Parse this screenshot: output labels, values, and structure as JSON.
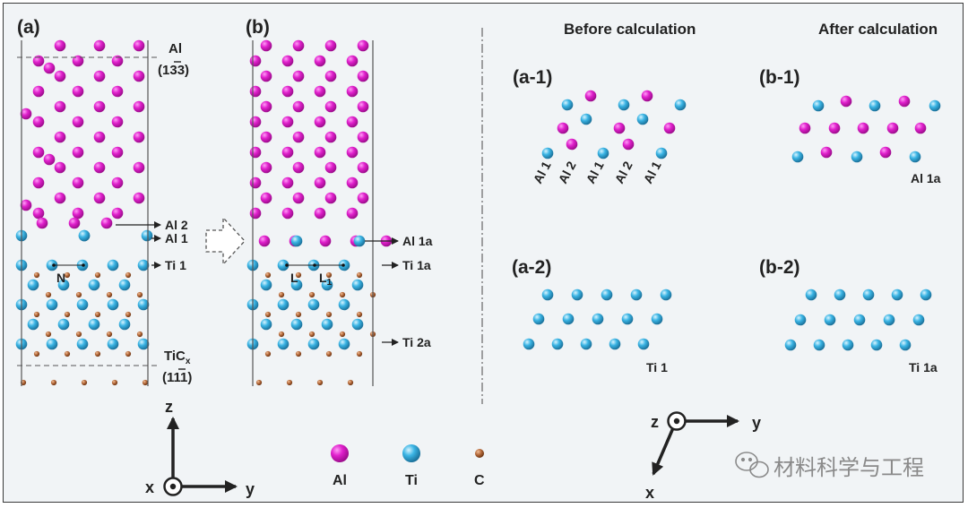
{
  "panels": {
    "a": "(a)",
    "b": "(b)",
    "a1": "(a-1)",
    "a2": "(a-2)",
    "b1": "(b-1)",
    "b2": "(b-2)"
  },
  "headers": {
    "before": "Before calculation",
    "after": "After calculation"
  },
  "labels": {
    "al_top": "Al",
    "al_plane_a": "(1",
    "al_plane_b": "3",
    "al_plane_c": "3)",
    "tic_main": "TiC",
    "tic_sub": "x",
    "tic_plane_a": "(1",
    "tic_plane_b": "1",
    "tic_plane_c": "1)",
    "al2": "Al 2",
    "al1": "Al 1",
    "ti1": "Ti 1",
    "al1a": "Al 1a",
    "ti1a": "Ti 1a",
    "ti2a": "Ti 2a",
    "n": "N",
    "l": "L",
    "l1": "L",
    "l1_sub": "1",
    "rows": [
      "Al 1",
      "Al 2",
      "Al 1",
      "Al 2",
      "Al 1"
    ],
    "a2_caption": "Ti 1",
    "b1_caption": "Al 1a",
    "b2_caption": "Ti 1a"
  },
  "axes_left": {
    "z": "z",
    "x": "x",
    "y": "y"
  },
  "axes_right": {
    "z": "z",
    "y": "y",
    "x": "x"
  },
  "legend": [
    {
      "label": "Al",
      "color": "#e020cc"
    },
    {
      "label": "Ti",
      "color": "#3ab4e4"
    },
    {
      "label": "C",
      "color": "#b5693a"
    }
  ],
  "watermark": "材料科学与工程",
  "colors": {
    "al": "#e020cc",
    "ti": "#3ab4e4",
    "c": "#b5693a"
  }
}
